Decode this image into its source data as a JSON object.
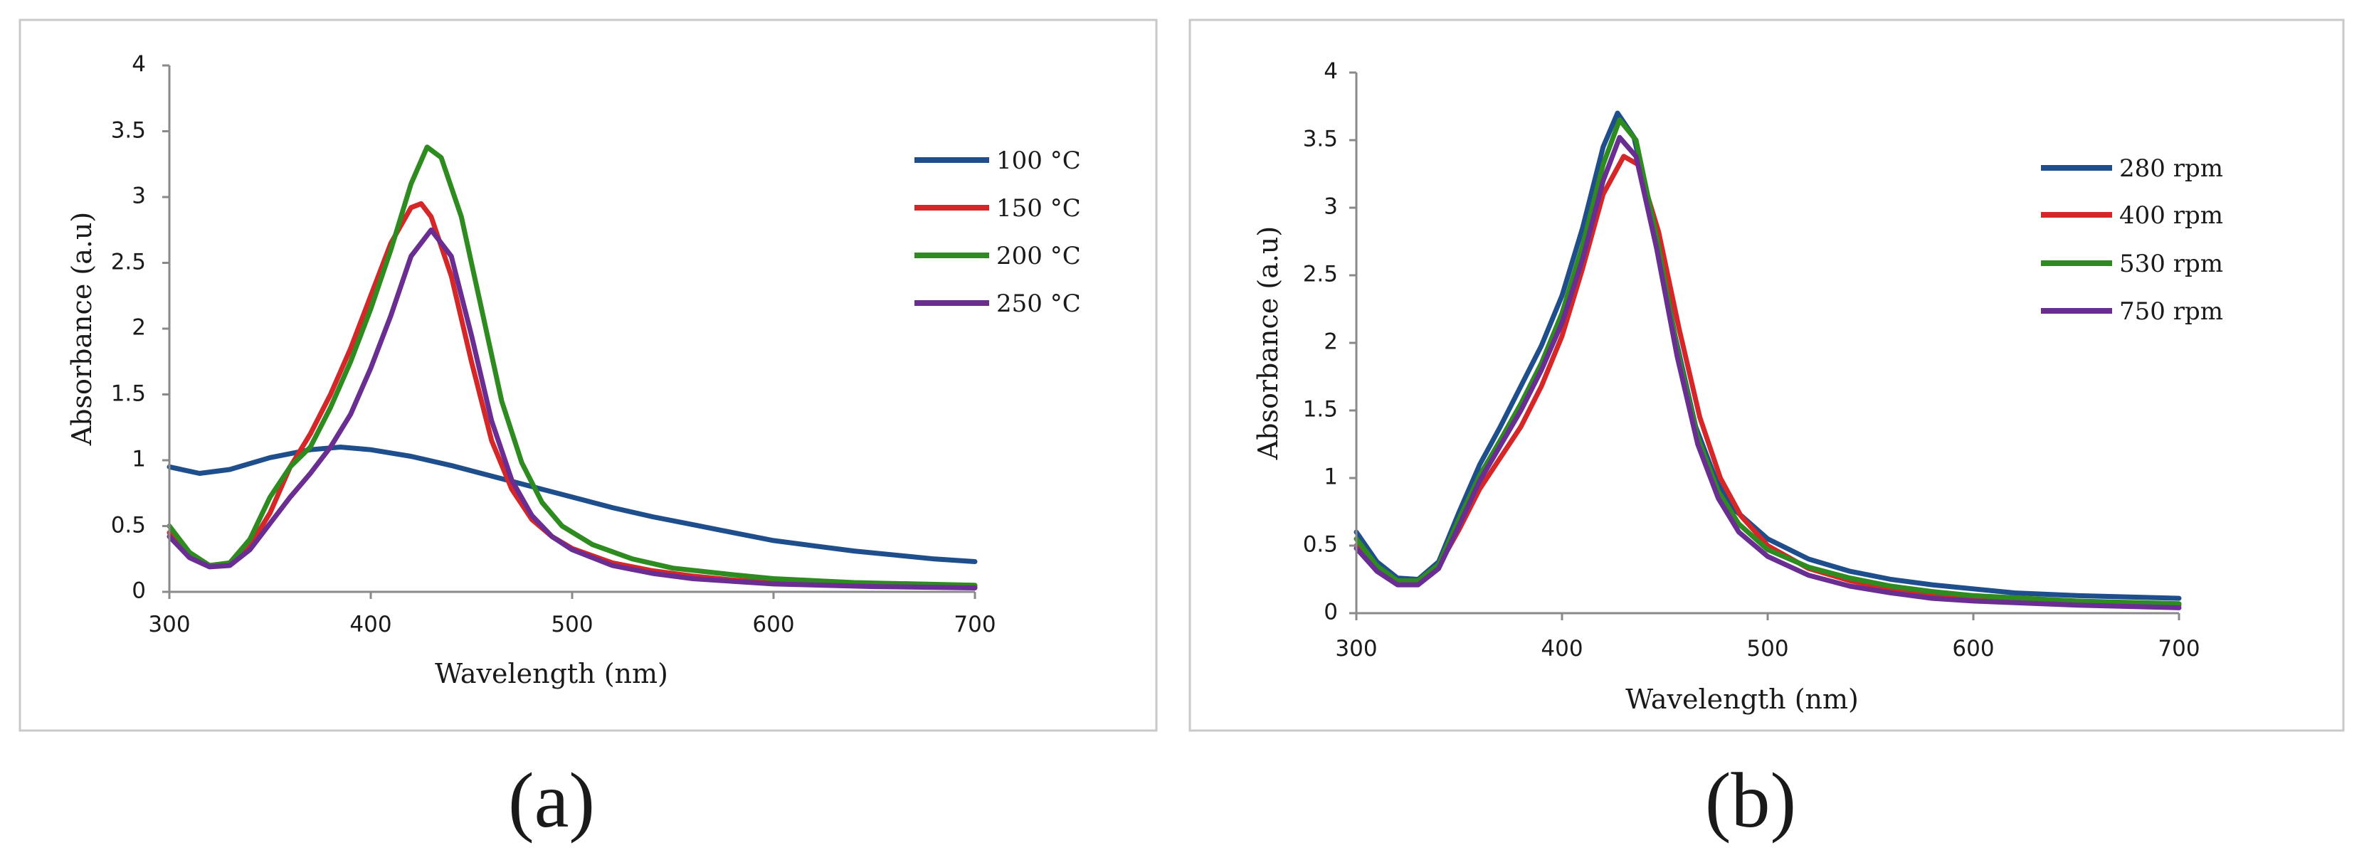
{
  "chart_data": [
    {
      "type": "line",
      "panel_label": "(a)",
      "xlabel": "Wavelength (nm)",
      "ylabel": "Absorbance (a.u)",
      "xlim": [
        300,
        700
      ],
      "ylim": [
        0,
        4
      ],
      "x_ticks": [
        "300",
        "400",
        "500",
        "600",
        "700"
      ],
      "y_ticks": [
        "0",
        "0.5",
        "1",
        "1.5",
        "2",
        "2.5",
        "3",
        "3.5",
        "4"
      ],
      "legend_position": "right",
      "series": [
        {
          "name": "100 °C",
          "color": "#1f4e8c",
          "points": [
            [
              300,
              0.95
            ],
            [
              315,
              0.9
            ],
            [
              330,
              0.93
            ],
            [
              350,
              1.02
            ],
            [
              370,
              1.08
            ],
            [
              385,
              1.1
            ],
            [
              400,
              1.08
            ],
            [
              420,
              1.03
            ],
            [
              440,
              0.96
            ],
            [
              460,
              0.88
            ],
            [
              480,
              0.8
            ],
            [
              500,
              0.72
            ],
            [
              520,
              0.64
            ],
            [
              540,
              0.57
            ],
            [
              560,
              0.51
            ],
            [
              580,
              0.45
            ],
            [
              600,
              0.39
            ],
            [
              620,
              0.35
            ],
            [
              640,
              0.31
            ],
            [
              660,
              0.28
            ],
            [
              680,
              0.25
            ],
            [
              700,
              0.23
            ]
          ]
        },
        {
          "name": "150 °C",
          "color": "#d62728",
          "points": [
            [
              300,
              0.45
            ],
            [
              310,
              0.28
            ],
            [
              320,
              0.2
            ],
            [
              330,
              0.22
            ],
            [
              340,
              0.35
            ],
            [
              350,
              0.6
            ],
            [
              360,
              0.95
            ],
            [
              370,
              1.2
            ],
            [
              380,
              1.5
            ],
            [
              390,
              1.85
            ],
            [
              400,
              2.25
            ],
            [
              410,
              2.65
            ],
            [
              420,
              2.92
            ],
            [
              425,
              2.95
            ],
            [
              430,
              2.85
            ],
            [
              440,
              2.4
            ],
            [
              450,
              1.75
            ],
            [
              460,
              1.15
            ],
            [
              470,
              0.78
            ],
            [
              480,
              0.55
            ],
            [
              490,
              0.42
            ],
            [
              500,
              0.33
            ],
            [
              520,
              0.22
            ],
            [
              540,
              0.16
            ],
            [
              560,
              0.12
            ],
            [
              580,
              0.09
            ],
            [
              600,
              0.07
            ],
            [
              620,
              0.06
            ],
            [
              650,
              0.05
            ],
            [
              700,
              0.04
            ]
          ]
        },
        {
          "name": "200 °C",
          "color": "#2e8b1f",
          "points": [
            [
              300,
              0.5
            ],
            [
              310,
              0.3
            ],
            [
              320,
              0.2
            ],
            [
              330,
              0.22
            ],
            [
              340,
              0.4
            ],
            [
              350,
              0.72
            ],
            [
              360,
              0.95
            ],
            [
              370,
              1.1
            ],
            [
              380,
              1.4
            ],
            [
              390,
              1.75
            ],
            [
              400,
              2.15
            ],
            [
              410,
              2.6
            ],
            [
              420,
              3.1
            ],
            [
              428,
              3.38
            ],
            [
              435,
              3.3
            ],
            [
              445,
              2.85
            ],
            [
              455,
              2.15
            ],
            [
              465,
              1.45
            ],
            [
              475,
              0.98
            ],
            [
              485,
              0.68
            ],
            [
              495,
              0.5
            ],
            [
              510,
              0.36
            ],
            [
              530,
              0.25
            ],
            [
              550,
              0.18
            ],
            [
              580,
              0.13
            ],
            [
              600,
              0.1
            ],
            [
              640,
              0.07
            ],
            [
              700,
              0.05
            ]
          ]
        },
        {
          "name": "250 °C",
          "color": "#6a2d91",
          "points": [
            [
              300,
              0.42
            ],
            [
              310,
              0.26
            ],
            [
              320,
              0.19
            ],
            [
              330,
              0.2
            ],
            [
              340,
              0.32
            ],
            [
              350,
              0.52
            ],
            [
              360,
              0.72
            ],
            [
              370,
              0.9
            ],
            [
              380,
              1.1
            ],
            [
              390,
              1.35
            ],
            [
              400,
              1.7
            ],
            [
              410,
              2.1
            ],
            [
              420,
              2.55
            ],
            [
              430,
              2.75
            ],
            [
              440,
              2.55
            ],
            [
              450,
              1.95
            ],
            [
              460,
              1.3
            ],
            [
              470,
              0.85
            ],
            [
              480,
              0.58
            ],
            [
              490,
              0.42
            ],
            [
              500,
              0.32
            ],
            [
              520,
              0.2
            ],
            [
              540,
              0.14
            ],
            [
              560,
              0.1
            ],
            [
              580,
              0.08
            ],
            [
              600,
              0.06
            ],
            [
              650,
              0.04
            ],
            [
              700,
              0.03
            ]
          ]
        }
      ]
    },
    {
      "type": "line",
      "panel_label": "(b)",
      "xlabel": "Wavelength (nm)",
      "ylabel": "Absorbance (a.u)",
      "xlim": [
        300,
        700
      ],
      "ylim": [
        0,
        4
      ],
      "x_ticks": [
        "300",
        "400",
        "500",
        "600",
        "700"
      ],
      "y_ticks": [
        "0",
        "0.5",
        "1",
        "1.5",
        "2",
        "2.5",
        "3",
        "3.5",
        "4"
      ],
      "legend_position": "right",
      "series": [
        {
          "name": "280 rpm",
          "color": "#1f4e8c",
          "points": [
            [
              300,
              0.6
            ],
            [
              310,
              0.38
            ],
            [
              320,
              0.26
            ],
            [
              330,
              0.25
            ],
            [
              340,
              0.38
            ],
            [
              350,
              0.75
            ],
            [
              360,
              1.1
            ],
            [
              370,
              1.38
            ],
            [
              380,
              1.68
            ],
            [
              390,
              1.98
            ],
            [
              400,
              2.35
            ],
            [
              410,
              2.85
            ],
            [
              420,
              3.45
            ],
            [
              427,
              3.7
            ],
            [
              435,
              3.52
            ],
            [
              445,
              2.85
            ],
            [
              455,
              2.05
            ],
            [
              465,
              1.38
            ],
            [
              475,
              0.98
            ],
            [
              485,
              0.75
            ],
            [
              500,
              0.55
            ],
            [
              520,
              0.4
            ],
            [
              540,
              0.31
            ],
            [
              560,
              0.25
            ],
            [
              580,
              0.21
            ],
            [
              600,
              0.18
            ],
            [
              620,
              0.15
            ],
            [
              650,
              0.13
            ],
            [
              700,
              0.11
            ]
          ]
        },
        {
          "name": "400 rpm",
          "color": "#d62728",
          "points": [
            [
              300,
              0.5
            ],
            [
              310,
              0.33
            ],
            [
              320,
              0.23
            ],
            [
              330,
              0.23
            ],
            [
              340,
              0.35
            ],
            [
              350,
              0.62
            ],
            [
              360,
              0.92
            ],
            [
              370,
              1.15
            ],
            [
              380,
              1.38
            ],
            [
              390,
              1.68
            ],
            [
              400,
              2.05
            ],
            [
              410,
              2.55
            ],
            [
              420,
              3.1
            ],
            [
              430,
              3.38
            ],
            [
              437,
              3.32
            ],
            [
              447,
              2.82
            ],
            [
              457,
              2.1
            ],
            [
              467,
              1.45
            ],
            [
              477,
              1.0
            ],
            [
              487,
              0.72
            ],
            [
              500,
              0.5
            ],
            [
              520,
              0.33
            ],
            [
              540,
              0.24
            ],
            [
              560,
              0.18
            ],
            [
              580,
              0.14
            ],
            [
              600,
              0.11
            ],
            [
              650,
              0.08
            ],
            [
              700,
              0.06
            ]
          ]
        },
        {
          "name": "530 rpm",
          "color": "#2e8b1f",
          "points": [
            [
              300,
              0.55
            ],
            [
              310,
              0.35
            ],
            [
              320,
              0.24
            ],
            [
              330,
              0.24
            ],
            [
              340,
              0.36
            ],
            [
              350,
              0.7
            ],
            [
              360,
              1.02
            ],
            [
              370,
              1.28
            ],
            [
              380,
              1.55
            ],
            [
              390,
              1.85
            ],
            [
              400,
              2.22
            ],
            [
              410,
              2.72
            ],
            [
              420,
              3.32
            ],
            [
              428,
              3.65
            ],
            [
              436,
              3.5
            ],
            [
              446,
              2.78
            ],
            [
              456,
              1.95
            ],
            [
              466,
              1.3
            ],
            [
              476,
              0.9
            ],
            [
              486,
              0.66
            ],
            [
              500,
              0.47
            ],
            [
              520,
              0.34
            ],
            [
              540,
              0.26
            ],
            [
              560,
              0.2
            ],
            [
              580,
              0.16
            ],
            [
              600,
              0.13
            ],
            [
              650,
              0.09
            ],
            [
              700,
              0.07
            ]
          ]
        },
        {
          "name": "750 rpm",
          "color": "#6a2d91",
          "points": [
            [
              300,
              0.48
            ],
            [
              310,
              0.31
            ],
            [
              320,
              0.21
            ],
            [
              330,
              0.21
            ],
            [
              340,
              0.33
            ],
            [
              350,
              0.65
            ],
            [
              360,
              0.98
            ],
            [
              370,
              1.24
            ],
            [
              380,
              1.5
            ],
            [
              390,
              1.8
            ],
            [
              400,
              2.15
            ],
            [
              410,
              2.62
            ],
            [
              420,
              3.2
            ],
            [
              428,
              3.52
            ],
            [
              436,
              3.38
            ],
            [
              446,
              2.7
            ],
            [
              456,
              1.9
            ],
            [
              466,
              1.25
            ],
            [
              476,
              0.85
            ],
            [
              486,
              0.6
            ],
            [
              500,
              0.42
            ],
            [
              520,
              0.28
            ],
            [
              540,
              0.2
            ],
            [
              560,
              0.15
            ],
            [
              580,
              0.11
            ],
            [
              600,
              0.09
            ],
            [
              650,
              0.06
            ],
            [
              700,
              0.04
            ]
          ]
        }
      ]
    }
  ]
}
